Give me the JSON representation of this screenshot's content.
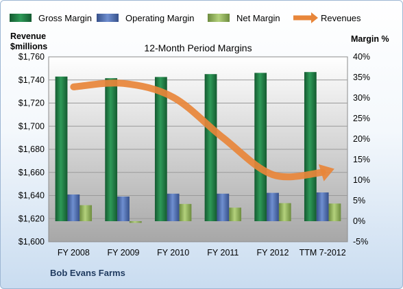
{
  "chart_data": {
    "type": "bar",
    "title": "12-Month Period Margins",
    "company": "Bob Evans Farms",
    "categories": [
      "FY 2008",
      "FY 2009",
      "FY 2010",
      "FY 2011",
      "FY 2012",
      "TTM 7-2012"
    ],
    "left_axis": {
      "label_line1": "Revenue",
      "label_line2": "$millions",
      "range": [
        1600,
        1760
      ],
      "ticks": [
        "$1,600",
        "$1,620",
        "$1,640",
        "$1,660",
        "$1,680",
        "$1,700",
        "$1,720",
        "$1,740",
        "$1,760"
      ]
    },
    "right_axis": {
      "label": "Margin %",
      "range": [
        -5,
        40
      ],
      "ticks": [
        "-5%",
        "0%",
        "5%",
        "10%",
        "15%",
        "20%",
        "25%",
        "30%",
        "35%",
        "40%"
      ]
    },
    "series": [
      {
        "name": "Gross Margin",
        "axis": "right",
        "color": "#1e7a45",
        "values": [
          35.2,
          34.8,
          35.1,
          35.8,
          36.1,
          36.3
        ]
      },
      {
        "name": "Operating Margin",
        "axis": "right",
        "color": "#4f6fb0",
        "values": [
          6.5,
          6.0,
          6.7,
          6.7,
          6.9,
          7.0
        ]
      },
      {
        "name": "Net Margin",
        "axis": "right",
        "color": "#8fb35a",
        "values": [
          3.9,
          -0.4,
          4.2,
          3.3,
          4.4,
          4.3
        ]
      },
      {
        "name": "Revenues",
        "axis": "left",
        "type": "line",
        "color": "#e8863a",
        "values": [
          1734,
          1737,
          1725,
          1690,
          1658,
          1660
        ]
      }
    ],
    "grid": true,
    "legend": "top"
  }
}
